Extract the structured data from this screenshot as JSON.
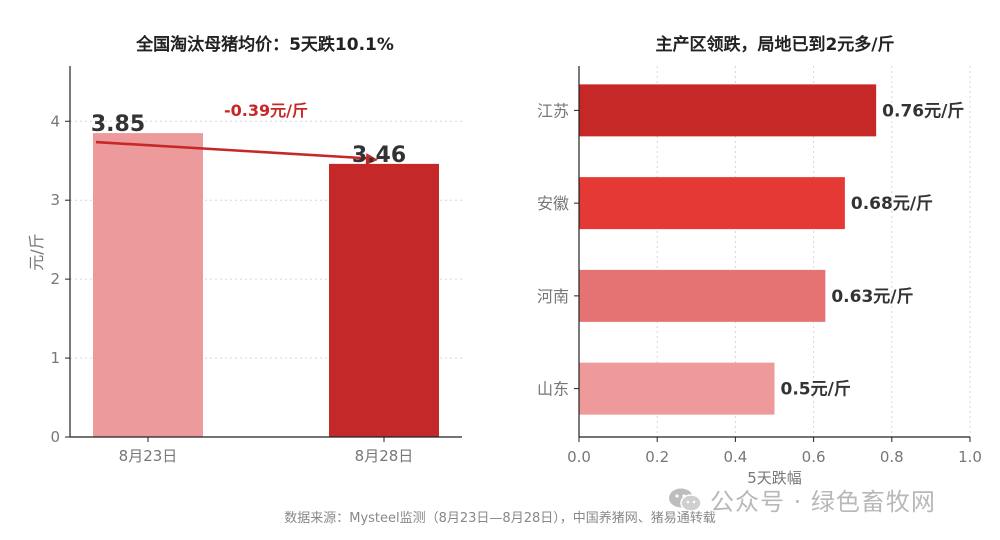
{
  "left_chart_title": "全国淘汰母猪均价：5天跌10.1%",
  "right_chart_title": "主产区领跌，局地已到2元多/斤",
  "source_note": "数据来源：Mysteel监测（8月23日—8月28日），中国养猪网、猪易通转载",
  "watermark": "公众号 · 绿色畜牧网",
  "colors": {
    "bar_light": "#ED9A9C",
    "bar_dark": "#C42828",
    "bar_red": "#E53935",
    "bar_mid": "#E57373",
    "arrow": "#C62828",
    "axis": "#222222",
    "tick_text": "#777777",
    "label_text": "#333333"
  },
  "chart_data": [
    {
      "type": "bar",
      "title": "全国淘汰母猪均价：5天跌10.1%",
      "categories": [
        "8月23日",
        "8月28日"
      ],
      "values": [
        3.85,
        3.46
      ],
      "value_labels": [
        "3.85",
        "3.46"
      ],
      "bar_colors": [
        "#ED9A9C",
        "#C42828"
      ],
      "ylabel": "元/斤",
      "xlabel": "",
      "ylim": [
        0,
        4.7
      ],
      "yticks": [
        0,
        1,
        2,
        3,
        4
      ],
      "grid": "horizontal dotted",
      "annotation": {
        "text": "-0.39元/斤",
        "from": "8月23日",
        "to": "8月28日"
      }
    },
    {
      "type": "bar",
      "orientation": "horizontal",
      "title": "主产区领跌，局地已到2元多/斤",
      "categories": [
        "江苏",
        "安徽",
        "河南",
        "山东"
      ],
      "values": [
        0.76,
        0.68,
        0.63,
        0.5
      ],
      "value_labels": [
        "0.76元/斤",
        "0.68元/斤",
        "0.63元/斤",
        "0.5元/斤"
      ],
      "bar_colors": [
        "#C62828",
        "#E53935",
        "#E57373",
        "#EF9A9A"
      ],
      "xlabel": "5天跌幅",
      "ylabel": "",
      "xlim": [
        0,
        1.0
      ],
      "xticks": [
        0.0,
        0.2,
        0.4,
        0.6,
        0.8,
        1.0
      ],
      "xtick_labels": [
        "0.0",
        "0.2",
        "0.4",
        "0.6",
        "0.8",
        "1.0"
      ],
      "grid": "vertical dotted"
    }
  ]
}
